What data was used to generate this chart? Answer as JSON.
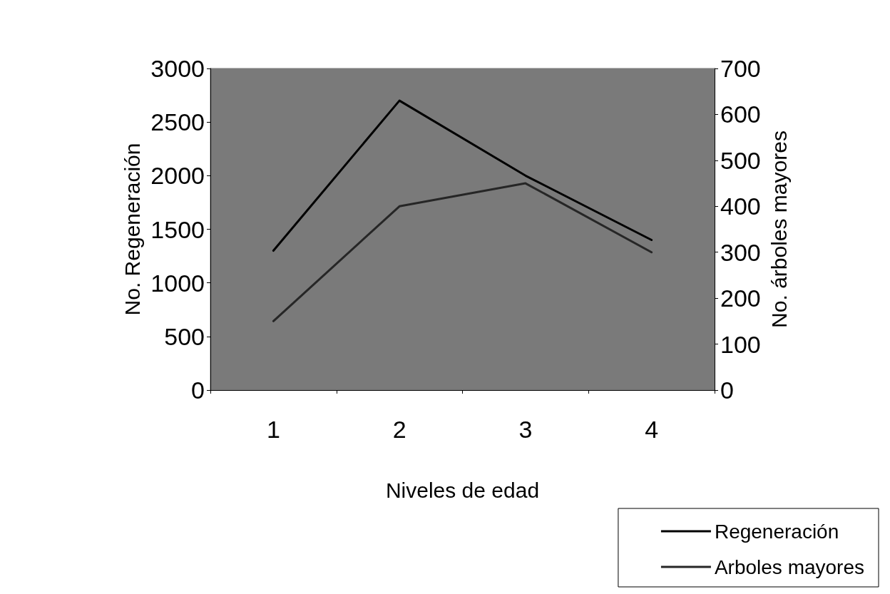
{
  "chart_data": {
    "type": "line",
    "xlabel": "Niveles de edad",
    "ylabel": "No. Regeneración",
    "y2label": "No. árboles mayores",
    "categories": [
      "1",
      "2",
      "3",
      "4"
    ],
    "series": [
      {
        "name": "Regeneración",
        "color": "#000000",
        "values": [
          1300,
          2700,
          2000,
          1400
        ]
      },
      {
        "name": "Arboles mayores",
        "color": "#262626",
        "axis": "y2",
        "values": [
          150,
          400,
          450,
          300
        ]
      }
    ],
    "ylim": [
      0,
      3000
    ],
    "yticks": [
      0,
      500,
      1000,
      1500,
      2000,
      2500,
      3000
    ],
    "y2lim": [
      0,
      700
    ],
    "y2ticks": [
      0,
      100,
      200,
      300,
      400,
      500,
      600,
      700
    ],
    "grid": false,
    "legend": "bottom right",
    "marker": "none",
    "line_style": "solid"
  }
}
